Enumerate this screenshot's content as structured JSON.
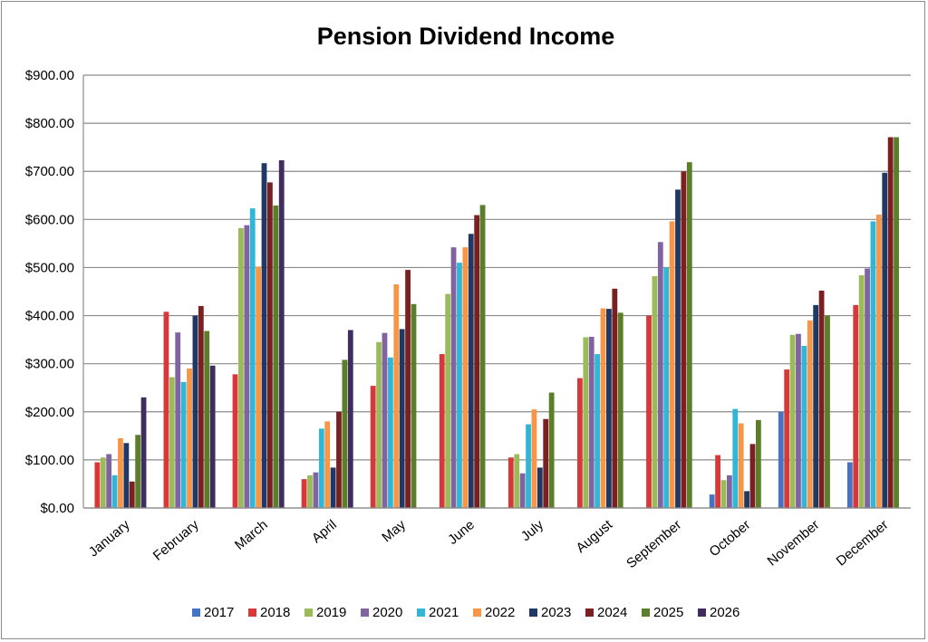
{
  "chart_data": {
    "type": "bar",
    "title": "Pension Dividend Income",
    "xlabel": "",
    "ylabel": "",
    "ylim": [
      0,
      900
    ],
    "yticks": [
      0,
      100,
      200,
      300,
      400,
      500,
      600,
      700,
      800,
      900
    ],
    "ytick_labels": [
      "$0.00",
      "$100.00",
      "$200.00",
      "$300.00",
      "$400.00",
      "$500.00",
      "$600.00",
      "$700.00",
      "$800.00",
      "$900.00"
    ],
    "grid": true,
    "legend_position": "bottom",
    "categories": [
      "January",
      "February",
      "March",
      "April",
      "May",
      "June",
      "July",
      "August",
      "September",
      "October",
      "November",
      "December"
    ],
    "series": [
      {
        "name": "2017",
        "color": "#4472c4",
        "values": [
          0,
          0,
          0,
          0,
          0,
          0,
          0,
          0,
          0,
          28,
          200,
          95
        ]
      },
      {
        "name": "2018",
        "color": "#d9383a",
        "values": [
          95,
          408,
          278,
          60,
          254,
          320,
          105,
          270,
          400,
          110,
          288,
          422
        ]
      },
      {
        "name": "2019",
        "color": "#9bbb59",
        "values": [
          105,
          272,
          582,
          68,
          345,
          445,
          112,
          355,
          482,
          58,
          360,
          484
        ]
      },
      {
        "name": "2020",
        "color": "#8064a2",
        "values": [
          112,
          365,
          588,
          74,
          364,
          542,
          72,
          356,
          553,
          68,
          362,
          498
        ]
      },
      {
        "name": "2021",
        "color": "#31b6d6",
        "values": [
          68,
          262,
          623,
          165,
          313,
          510,
          174,
          320,
          500,
          206,
          337,
          596
        ]
      },
      {
        "name": "2022",
        "color": "#f79646",
        "values": [
          145,
          290,
          502,
          180,
          465,
          542,
          205,
          415,
          596,
          176,
          390,
          610
        ]
      },
      {
        "name": "2023",
        "color": "#1f3864",
        "values": [
          135,
          400,
          717,
          84,
          372,
          570,
          84,
          414,
          662,
          35,
          422,
          697
        ]
      },
      {
        "name": "2024",
        "color": "#7b1f20",
        "values": [
          55,
          420,
          677,
          200,
          495,
          609,
          185,
          456,
          700,
          133,
          452,
          771
        ]
      },
      {
        "name": "2025",
        "color": "#5a7e2a",
        "values": [
          152,
          368,
          629,
          308,
          424,
          630,
          240,
          406,
          719,
          183,
          400,
          771
        ]
      },
      {
        "name": "2026",
        "color": "#3f2d5f",
        "values": [
          230,
          296,
          723,
          370,
          0,
          0,
          0,
          0,
          0,
          0,
          0,
          0
        ]
      }
    ]
  }
}
